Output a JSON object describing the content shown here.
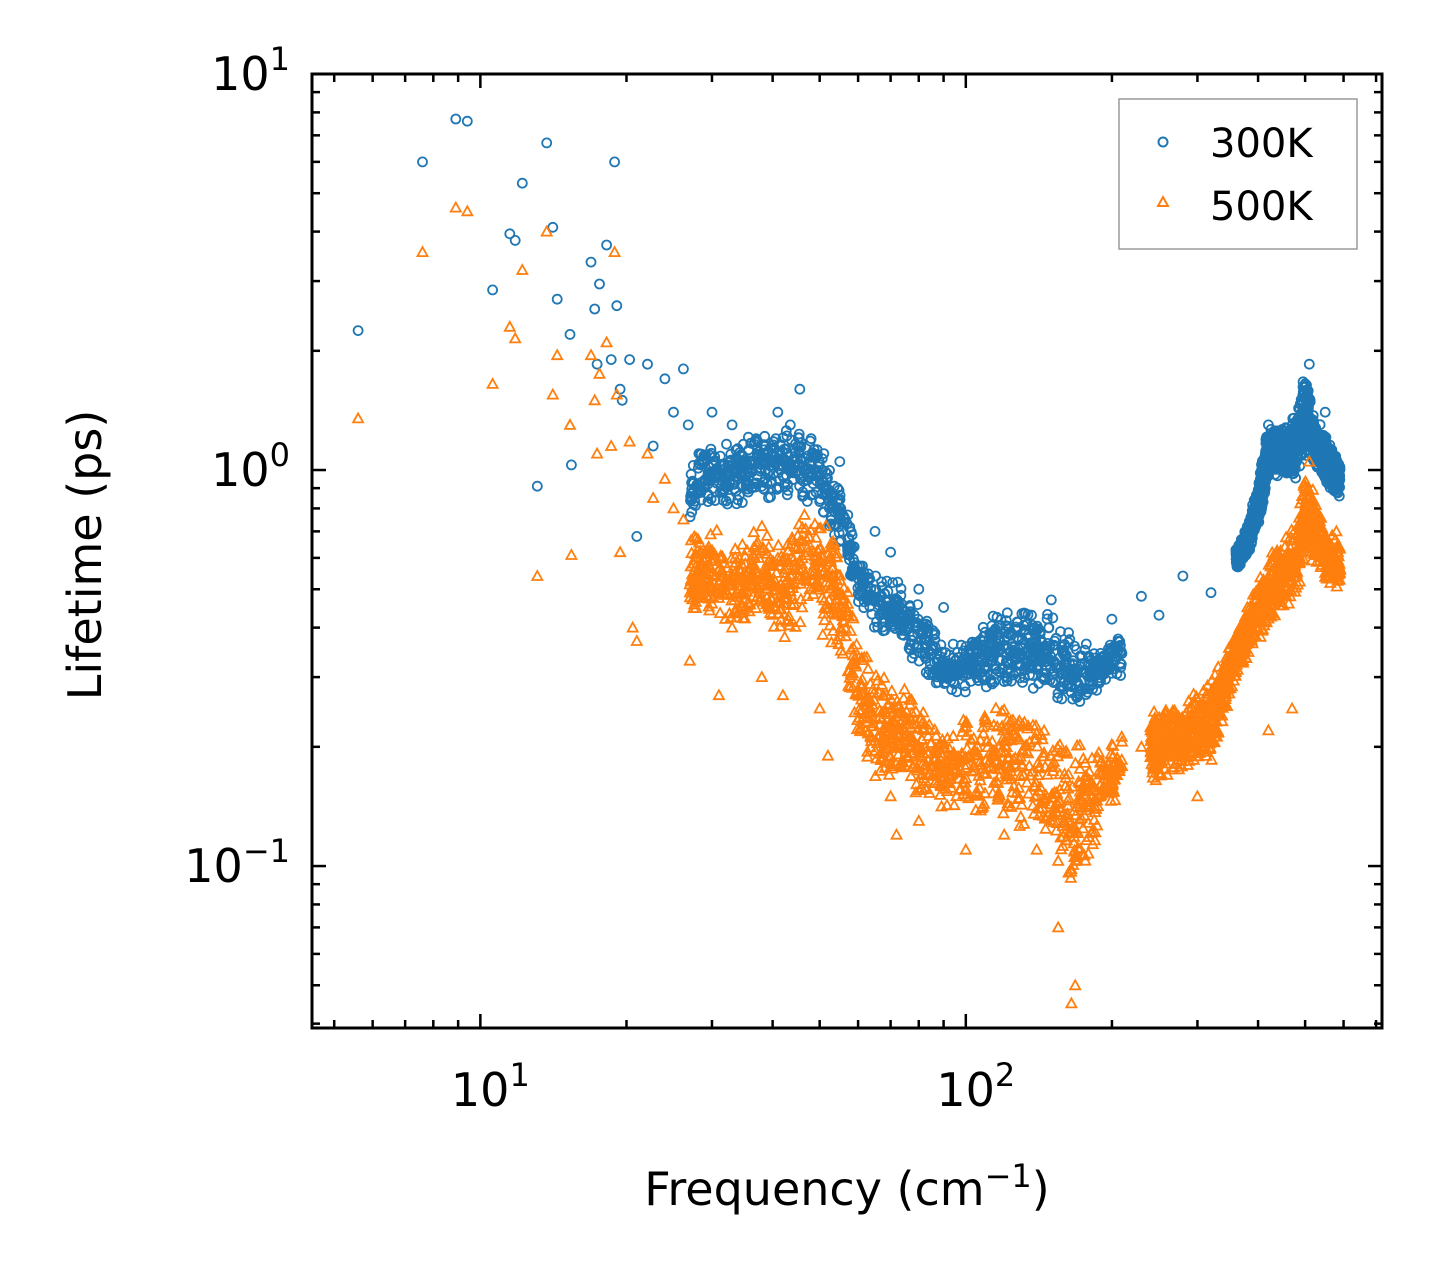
{
  "chart_data": {
    "type": "scatter",
    "xscale": "log",
    "yscale": "log",
    "xlabel": "Frequency (cm",
    "xlabel_sup": "−1",
    "xlabel_close": ")",
    "ylabel": "Lifetime (ps)",
    "xlim": [
      4.5,
      720
    ],
    "ylim": [
      0.039,
      10
    ],
    "x_ticks": [
      {
        "value": 10,
        "base": "10",
        "exp": "1"
      },
      {
        "value": 100,
        "base": "10",
        "exp": "2"
      }
    ],
    "y_ticks": [
      {
        "value": 0.1,
        "base": "10",
        "exp": "−1"
      },
      {
        "value": 1,
        "base": "10",
        "exp": "0"
      },
      {
        "value": 10,
        "base": "10",
        "exp": "1"
      }
    ],
    "legend_position": "top-right",
    "series": [
      {
        "name": "300K",
        "color": "#1f77b4",
        "marker": "circle",
        "points": [
          [
            5.6,
            2.25
          ],
          [
            7.6,
            6.0
          ],
          [
            8.9,
            7.7
          ],
          [
            9.4,
            7.6
          ],
          [
            10.6,
            2.85
          ],
          [
            11.5,
            3.95
          ],
          [
            11.8,
            3.8
          ],
          [
            12.2,
            5.3
          ],
          [
            13.1,
            0.91
          ],
          [
            13.7,
            6.7
          ],
          [
            14.1,
            4.1
          ],
          [
            14.4,
            2.7
          ],
          [
            15.3,
            2.2
          ],
          [
            15.4,
            1.03
          ],
          [
            16.9,
            3.35
          ],
          [
            17.2,
            2.55
          ],
          [
            17.6,
            2.95
          ],
          [
            17.4,
            1.85
          ],
          [
            18.2,
            3.7
          ],
          [
            18.6,
            1.9
          ],
          [
            18.9,
            6.0
          ],
          [
            19.1,
            2.6
          ],
          [
            19.4,
            1.6
          ],
          [
            19.6,
            1.5
          ],
          [
            20.3,
            1.9
          ],
          [
            21.0,
            0.68
          ],
          [
            22.1,
            1.85
          ],
          [
            22.7,
            1.15
          ],
          [
            24.0,
            1.7
          ],
          [
            25.0,
            1.4
          ],
          [
            26.2,
            1.8
          ],
          [
            26.8,
            1.3
          ],
          [
            28.2,
            1.1
          ],
          [
            30.0,
            1.4
          ],
          [
            33.0,
            1.3
          ],
          [
            37.0,
            1.2
          ],
          [
            41.0,
            1.4
          ],
          [
            43.5,
            1.3
          ],
          [
            45.5,
            1.6
          ],
          [
            48.0,
            1.2
          ],
          [
            51.0,
            1.1
          ],
          [
            55.0,
            1.05
          ],
          [
            65.0,
            0.7
          ],
          [
            70.0,
            0.62
          ],
          [
            80.0,
            0.5
          ],
          [
            90.0,
            0.45
          ],
          [
            95.0,
            0.33
          ],
          [
            150.0,
            0.47
          ],
          [
            170.0,
            0.29
          ],
          [
            200.0,
            0.42
          ],
          [
            230.0,
            0.48
          ],
          [
            250.0,
            0.43
          ],
          [
            280.0,
            0.54
          ],
          [
            320.0,
            0.49
          ],
          [
            380.0,
            0.72
          ],
          [
            420.0,
            1.3
          ],
          [
            470.0,
            1.3
          ],
          [
            510.0,
            1.85
          ],
          [
            550.0,
            1.4
          ]
        ],
        "bands": [
          [
            [
              27,
              0.75,
              1.1
            ],
            [
              30,
              0.8,
              1.2
            ],
            [
              34,
              0.8,
              1.2
            ],
            [
              38,
              0.85,
              1.25
            ],
            [
              42,
              0.82,
              1.3
            ],
            [
              47,
              0.82,
              1.25
            ],
            [
              52,
              0.72,
              1.1
            ],
            [
              56,
              0.6,
              0.9
            ],
            [
              60,
              0.45,
              0.62
            ],
            [
              66,
              0.38,
              0.55
            ],
            [
              74,
              0.36,
              0.52
            ],
            [
              82,
              0.3,
              0.45
            ],
            [
              90,
              0.27,
              0.36
            ],
            [
              100,
              0.27,
              0.38
            ],
            [
              115,
              0.28,
              0.44
            ],
            [
              130,
              0.28,
              0.46
            ],
            [
              150,
              0.27,
              0.44
            ],
            [
              170,
              0.24,
              0.38
            ],
            [
              190,
              0.28,
              0.35
            ],
            [
              210,
              0.3,
              0.4
            ]
          ],
          [
            [
              360,
              0.55,
              0.65
            ],
            [
              380,
              0.6,
              0.72
            ],
            [
              400,
              0.7,
              0.95
            ],
            [
              420,
              0.95,
              1.3
            ],
            [
              450,
              0.95,
              1.3
            ],
            [
              480,
              0.95,
              1.4
            ],
            [
              500,
              1.1,
              1.8
            ],
            [
              520,
              1.0,
              1.4
            ],
            [
              560,
              0.9,
              1.2
            ],
            [
              590,
              0.82,
              1.05
            ]
          ]
        ],
        "count": 2600
      },
      {
        "name": "500K",
        "color": "#ff7f0e",
        "marker": "triangle",
        "points": [
          [
            5.6,
            1.35
          ],
          [
            7.6,
            3.55
          ],
          [
            8.9,
            4.6
          ],
          [
            9.4,
            4.5
          ],
          [
            10.6,
            1.65
          ],
          [
            11.5,
            2.3
          ],
          [
            11.8,
            2.15
          ],
          [
            12.2,
            3.2
          ],
          [
            13.1,
            0.54
          ],
          [
            13.7,
            4.0
          ],
          [
            14.1,
            1.55
          ],
          [
            14.4,
            1.95
          ],
          [
            15.3,
            1.3
          ],
          [
            15.4,
            0.61
          ],
          [
            16.9,
            1.95
          ],
          [
            17.2,
            1.5
          ],
          [
            17.6,
            1.75
          ],
          [
            17.4,
            1.1
          ],
          [
            18.2,
            2.1
          ],
          [
            18.6,
            1.15
          ],
          [
            18.9,
            3.55
          ],
          [
            19.1,
            1.55
          ],
          [
            19.4,
            0.62
          ],
          [
            20.3,
            1.18
          ],
          [
            20.6,
            0.4
          ],
          [
            21.0,
            0.37
          ],
          [
            22.1,
            1.1
          ],
          [
            22.7,
            0.85
          ],
          [
            24.0,
            0.95
          ],
          [
            25.0,
            0.8
          ],
          [
            26.2,
            0.75
          ],
          [
            27.0,
            0.33
          ],
          [
            31.0,
            0.27
          ],
          [
            33.0,
            0.4
          ],
          [
            38.0,
            0.3
          ],
          [
            42.0,
            0.27
          ],
          [
            46.0,
            0.45
          ],
          [
            50.0,
            0.25
          ],
          [
            52.0,
            0.19
          ],
          [
            70.0,
            0.15
          ],
          [
            72.0,
            0.12
          ],
          [
            80.0,
            0.13
          ],
          [
            100.0,
            0.11
          ],
          [
            120.0,
            0.12
          ],
          [
            140.0,
            0.11
          ],
          [
            155.0,
            0.07
          ],
          [
            165.0,
            0.045
          ],
          [
            168.0,
            0.05
          ],
          [
            200.0,
            0.16
          ],
          [
            230.0,
            0.2
          ],
          [
            260.0,
            0.17
          ],
          [
            300.0,
            0.15
          ],
          [
            330.0,
            0.22
          ],
          [
            380.0,
            0.45
          ],
          [
            420.0,
            0.22
          ],
          [
            470.0,
            0.25
          ],
          [
            510.0,
            1.05
          ],
          [
            550.0,
            0.55
          ],
          [
            580.0,
            0.7
          ]
        ],
        "bands": [
          [
            [
              27,
              0.42,
              0.7
            ],
            [
              30,
              0.4,
              0.72
            ],
            [
              34,
              0.38,
              0.66
            ],
            [
              38,
              0.42,
              0.75
            ],
            [
              42,
              0.35,
              0.7
            ],
            [
              47,
              0.42,
              0.8
            ],
            [
              52,
              0.36,
              0.75
            ],
            [
              56,
              0.32,
              0.6
            ],
            [
              60,
              0.2,
              0.38
            ],
            [
              66,
              0.16,
              0.32
            ],
            [
              74,
              0.16,
              0.3
            ],
            [
              82,
              0.14,
              0.26
            ],
            [
              90,
              0.14,
              0.22
            ],
            [
              100,
              0.13,
              0.25
            ],
            [
              115,
              0.13,
              0.27
            ],
            [
              130,
              0.12,
              0.28
            ],
            [
              150,
              0.1,
              0.25
            ],
            [
              170,
              0.08,
              0.22
            ],
            [
              190,
              0.13,
              0.2
            ],
            [
              210,
              0.15,
              0.22
            ]
          ],
          [
            [
              240,
              0.16,
              0.25
            ],
            [
              280,
              0.17,
              0.26
            ],
            [
              320,
              0.18,
              0.3
            ],
            [
              360,
              0.3,
              0.4
            ],
            [
              390,
              0.35,
              0.5
            ],
            [
              420,
              0.4,
              0.6
            ],
            [
              450,
              0.45,
              0.7
            ],
            [
              480,
              0.45,
              0.75
            ],
            [
              500,
              0.6,
              1.0
            ],
            [
              530,
              0.55,
              0.85
            ],
            [
              560,
              0.5,
              0.7
            ],
            [
              590,
              0.5,
              0.65
            ]
          ]
        ],
        "count": 2600
      }
    ]
  }
}
